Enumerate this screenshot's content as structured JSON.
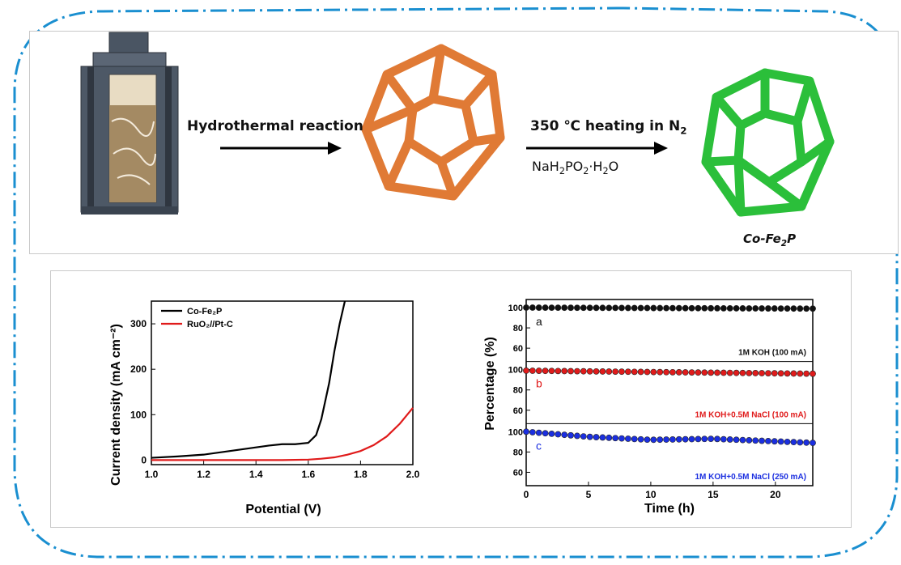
{
  "scheme": {
    "step1_label": "Hydrothermal reaction",
    "step2_label_main": "350 ℃ heating in N",
    "step2_label_sub": "2",
    "step2_reagent_a": "NaH",
    "step2_reagent_a_sub": "2",
    "step2_reagent_b": "PO",
    "step2_reagent_b_sub": "2",
    "step2_reagent_c": "·H",
    "step2_reagent_c_sub": "2",
    "step2_reagent_d": "O",
    "product_main": "Co-Fe",
    "product_sub": "2",
    "product_end": "P",
    "colors": {
      "frame": "#1a8fd0",
      "precursor": "#e07a35",
      "product": "#2bbf3a"
    }
  },
  "chart_data": [
    {
      "type": "line",
      "xlabel": "Potential (V)",
      "ylabel": "Current density (mA cm⁻²)",
      "xlim": [
        1.0,
        2.0
      ],
      "ylim": [
        -10,
        350
      ],
      "xticks": [
        "1.0",
        "1.2",
        "1.4",
        "1.6",
        "1.8",
        "2.0"
      ],
      "yticks": [
        "0",
        "100",
        "200",
        "300"
      ],
      "legend_position": "top-left",
      "series": [
        {
          "name": "Co-Fe₂P",
          "color": "#000000",
          "x": [
            1.0,
            1.1,
            1.2,
            1.3,
            1.4,
            1.45,
            1.5,
            1.55,
            1.6,
            1.63,
            1.65,
            1.68,
            1.7,
            1.72,
            1.74
          ],
          "y": [
            5,
            8,
            12,
            20,
            28,
            32,
            35,
            35,
            38,
            55,
            90,
            170,
            240,
            300,
            350
          ]
        },
        {
          "name": "RuO₂//Pt-C",
          "color": "#e01b1b",
          "x": [
            1.0,
            1.2,
            1.4,
            1.5,
            1.6,
            1.65,
            1.7,
            1.75,
            1.8,
            1.85,
            1.9,
            1.95,
            2.0
          ],
          "y": [
            0,
            0,
            0,
            0,
            1,
            3,
            6,
            12,
            20,
            33,
            52,
            80,
            115
          ]
        }
      ]
    },
    {
      "type": "scatter",
      "xlabel": "Time (h)",
      "ylabel": "Percentage (%)",
      "xlim": [
        0,
        23
      ],
      "xticks": [
        "0",
        "5",
        "10",
        "15",
        "20"
      ],
      "panels": [
        {
          "letter": "a",
          "label": "1M KOH (100 mA)",
          "color": "#111111",
          "yticks": [
            "100",
            "80",
            "60"
          ],
          "x": [
            0,
            23
          ],
          "y": [
            100,
            99
          ]
        },
        {
          "letter": "b",
          "label": "1M KOH+0.5M NaCl (100 mA)",
          "color": "#e01b1b",
          "yticks": [
            "100",
            "80",
            "60"
          ],
          "x": [
            0,
            23
          ],
          "y": [
            99,
            96
          ]
        },
        {
          "letter": "c",
          "label": "1M KOH+0.5M NaCl (250 mA)",
          "color": "#1b2fe0",
          "yticks": [
            "100",
            "80",
            "60"
          ],
          "x": [
            0,
            5,
            10,
            15,
            23
          ],
          "y": [
            100,
            95,
            92,
            93,
            89
          ]
        }
      ]
    }
  ]
}
